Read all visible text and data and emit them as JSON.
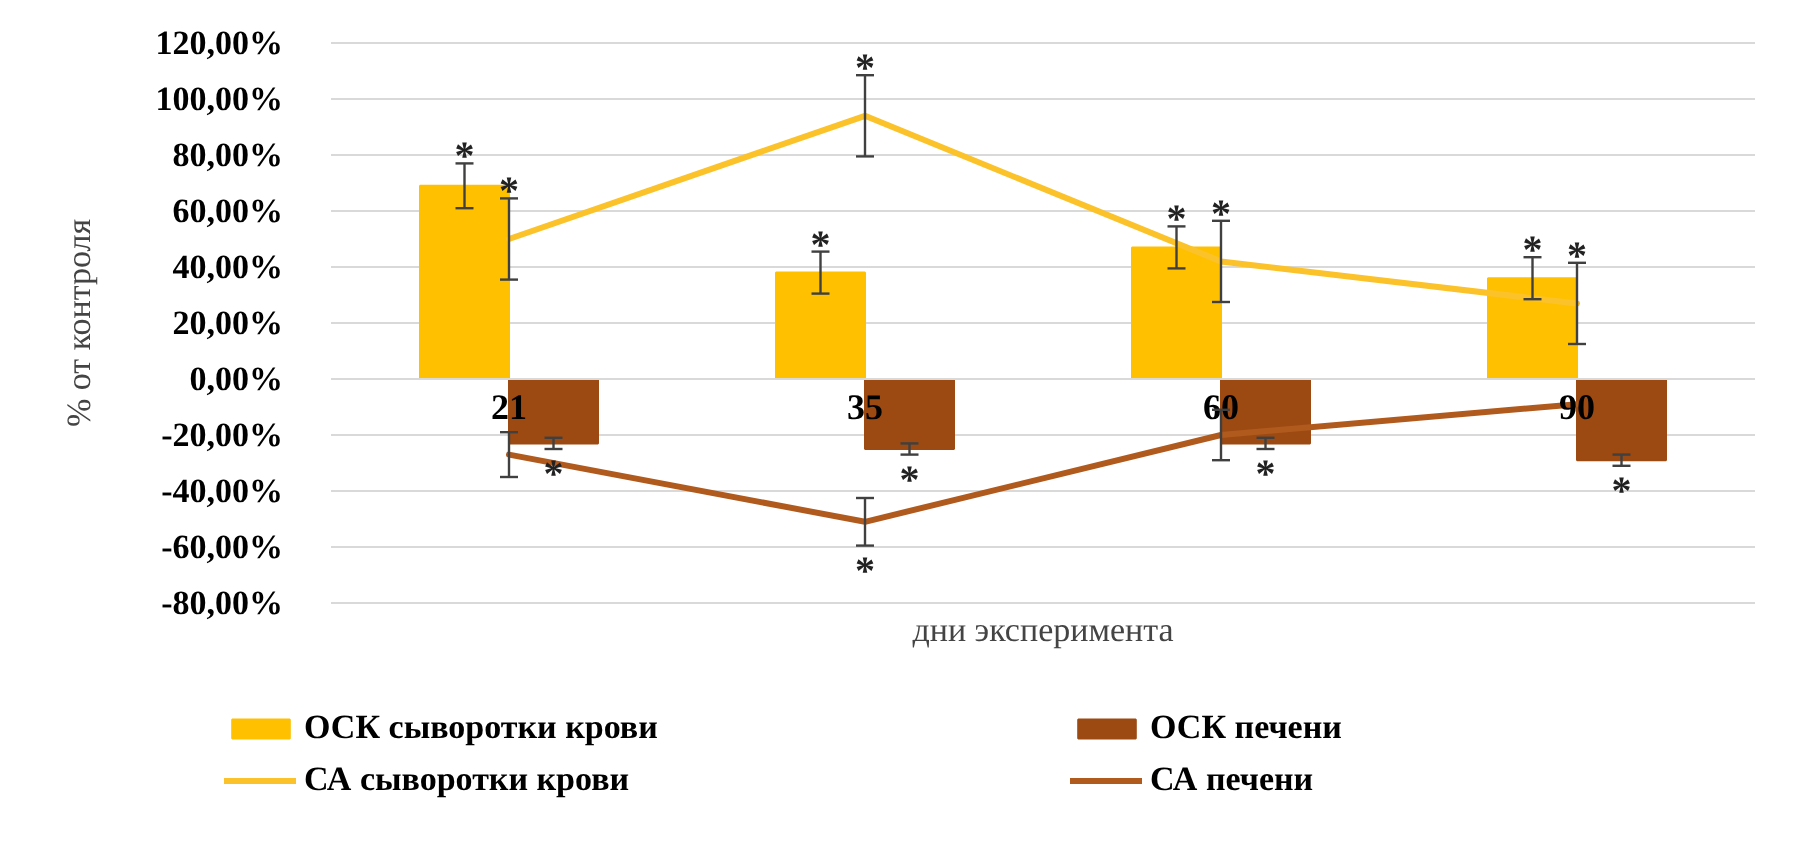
{
  "chart_data": {
    "type": "bar",
    "xlabel": "дни эксперимента",
    "ylabel": "% от контроля",
    "categories": [
      "21",
      "35",
      "60",
      "90"
    ],
    "ylim": [
      -80,
      120
    ],
    "yticks": [
      {
        "value": -80,
        "label": "-80,00%"
      },
      {
        "value": -60,
        "label": "-60,00%"
      },
      {
        "value": -40,
        "label": "-40,00%"
      },
      {
        "value": -20,
        "label": "-20,00%"
      },
      {
        "value": 0,
        "label": "0,00%"
      },
      {
        "value": 20,
        "label": "20,00%"
      },
      {
        "value": 40,
        "label": "40,00%"
      },
      {
        "value": 60,
        "label": "60,00%"
      },
      {
        "value": 80,
        "label": "80,00%"
      },
      {
        "value": 100,
        "label": "100,00%"
      },
      {
        "value": 120,
        "label": "120,00%"
      }
    ],
    "grid": "y",
    "legend": "bottom",
    "series": [
      {
        "name": "ОСК сыворотки крови",
        "color": "#ffc000",
        "values": [
          69,
          38,
          47,
          36
        ],
        "errors": [
          8,
          7.5,
          7.5,
          7.5
        ],
        "value_labels": [
          "*",
          "*",
          "*",
          "*"
        ]
      },
      {
        "name": "ОСК печени",
        "color": "#9c4a12",
        "values": [
          -23,
          -25,
          -23,
          -29
        ],
        "errors": [
          2,
          2,
          2,
          2
        ],
        "value_labels": [
          "*",
          "*",
          "*",
          "*"
        ]
      },
      {
        "name": "СА сыворотки крови",
        "type": "line",
        "color": "#fcc22a",
        "values": [
          50,
          94,
          42,
          27
        ],
        "errors": [
          14.5,
          14.5,
          14.5,
          14.5
        ],
        "value_labels": [
          "*",
          "*",
          "*",
          "*"
        ]
      },
      {
        "name": "СА печени",
        "type": "line",
        "color": "#b15a1e",
        "values": [
          -27,
          -51,
          -20,
          -9
        ],
        "errors": [
          8,
          8.5,
          9,
          null
        ],
        "value_labels": [
          null,
          "*",
          null,
          null
        ]
      }
    ]
  }
}
